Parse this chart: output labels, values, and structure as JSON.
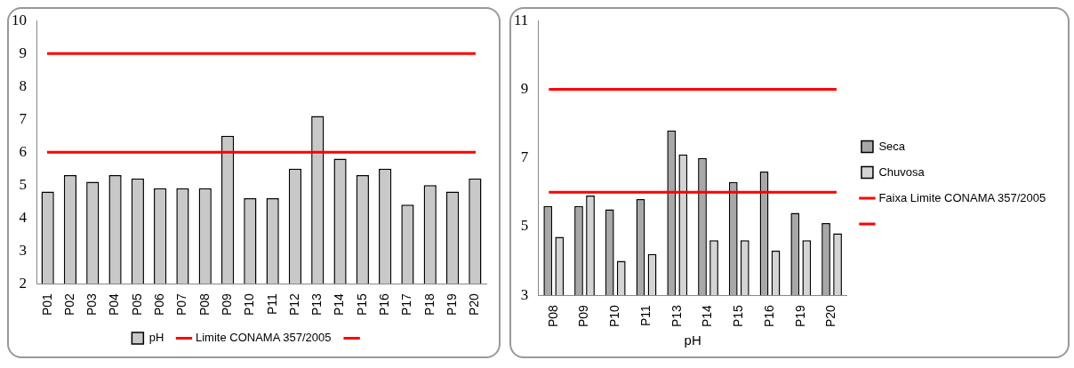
{
  "chart_data": [
    {
      "type": "bar",
      "categories": [
        "P01",
        "P02",
        "P03",
        "P04",
        "P05",
        "P06",
        "P07",
        "P08",
        "P09",
        "P10",
        "P11",
        "P12",
        "P13",
        "P14",
        "P15",
        "P16",
        "P17",
        "P18",
        "P19",
        "P20"
      ],
      "series": [
        {
          "name": "pH",
          "color": "#c8c8c8",
          "values": [
            4.8,
            5.3,
            5.1,
            5.3,
            5.2,
            4.9,
            4.9,
            4.9,
            6.5,
            4.6,
            4.6,
            5.5,
            7.1,
            5.8,
            5.3,
            5.5,
            4.4,
            5.0,
            4.8,
            5.2
          ]
        }
      ],
      "ylim": [
        2,
        10
      ],
      "yticks": [
        2,
        3,
        4,
        5,
        6,
        7,
        8,
        9,
        10
      ],
      "ref_lines": [
        {
          "axis": "y",
          "value": 9,
          "label": "Limite CONAMA 357/2005",
          "color": "#ff0000"
        },
        {
          "axis": "y",
          "value": 6,
          "color": "#ff0000"
        }
      ],
      "legend": "bottom",
      "grid": false
    },
    {
      "type": "bar",
      "xlabel": "pH",
      "categories": [
        "P08",
        "P09",
        "P10",
        "P11",
        "P13",
        "P14",
        "P15",
        "P16",
        "P19",
        "P20"
      ],
      "series": [
        {
          "name": "Seca",
          "color": "#a8a8a8",
          "values": [
            5.6,
            5.6,
            5.5,
            5.8,
            7.8,
            7.0,
            6.3,
            6.6,
            5.4,
            5.1
          ]
        },
        {
          "name": "Chuvosa",
          "color": "#d4d4d4",
          "values": [
            4.7,
            5.9,
            4.0,
            4.2,
            7.1,
            4.6,
            4.6,
            4.3,
            4.6,
            4.8
          ]
        }
      ],
      "ylim": [
        3,
        11
      ],
      "yticks": [
        3,
        5,
        7,
        9,
        11
      ],
      "ref_lines": [
        {
          "axis": "y",
          "value": 9,
          "label": "Faixa Limite CONAMA 357/2005",
          "color": "#ff0000"
        },
        {
          "axis": "y",
          "value": 6,
          "color": "#ff0000"
        }
      ],
      "legend": "right",
      "grid": false
    }
  ]
}
